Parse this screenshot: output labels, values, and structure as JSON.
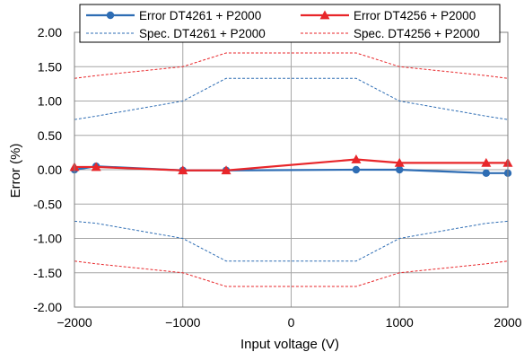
{
  "chart_data": {
    "type": "line",
    "xlabel": "Input voltage (V)",
    "ylabel": "Error (%)",
    "xlim": [
      -2000,
      2000
    ],
    "ylim": [
      -2.0,
      2.0
    ],
    "x_ticks": [
      -2000,
      -1000,
      0,
      1000,
      2000
    ],
    "x_tick_labels": [
      "−2000",
      "−1000",
      "0",
      "1000",
      "2000"
    ],
    "y_ticks": [
      2.0,
      1.5,
      1.0,
      0.5,
      0.0,
      -0.5,
      -1.0,
      -1.5,
      -2.0
    ],
    "y_tick_labels": [
      "2.00",
      "1.50",
      "1.00",
      "0.50",
      "0.00",
      "-0.50",
      "-1.00",
      "-1.50",
      "-2.00"
    ],
    "grid": true,
    "legend_position": "top",
    "series": [
      {
        "name": "Error DT4261 + P2000",
        "color": "#2E6DB4",
        "style": "solid",
        "marker": "circle",
        "x": [
          -2000,
          -1800,
          -1000,
          -600,
          600,
          1000,
          1800,
          2000
        ],
        "y": [
          0.0,
          0.05,
          -0.01,
          -0.01,
          0.0,
          0.0,
          -0.05,
          -0.05
        ]
      },
      {
        "name": "Error DT4256 + P2000",
        "color": "#E8262A",
        "style": "solid",
        "marker": "triangle",
        "x": [
          -2000,
          -1800,
          -1000,
          -600,
          600,
          1000,
          1800,
          2000
        ],
        "y": [
          0.04,
          0.04,
          -0.01,
          -0.01,
          0.15,
          0.1,
          0.1,
          0.1
        ]
      },
      {
        "name": "Spec. DT4261 + P2000",
        "color": "#2E6DB4",
        "style": "dashed",
        "marker": "none",
        "x": [
          -2000,
          -1800,
          -1000,
          -600,
          600,
          1000,
          1800,
          2000
        ],
        "y": [
          0.73,
          0.78,
          1.0,
          1.33,
          1.33,
          1.0,
          0.78,
          0.73
        ]
      },
      {
        "name": "Spec. DT4261 + P2000",
        "legend": false,
        "color": "#2E6DB4",
        "style": "dashed",
        "marker": "none",
        "x": [
          -2000,
          -1800,
          -1000,
          -600,
          600,
          1000,
          1800,
          2000
        ],
        "y": [
          -0.75,
          -0.78,
          -1.0,
          -1.33,
          -1.33,
          -1.0,
          -0.78,
          -0.75
        ]
      },
      {
        "name": "Spec. DT4256 + P2000",
        "color": "#E8262A",
        "style": "dashed",
        "marker": "none",
        "x": [
          -2000,
          -1800,
          -1000,
          -600,
          600,
          1000,
          1800,
          2000
        ],
        "y": [
          1.33,
          1.37,
          1.5,
          1.7,
          1.7,
          1.5,
          1.37,
          1.33
        ]
      },
      {
        "name": "Spec. DT4256 + P2000",
        "legend": false,
        "color": "#E8262A",
        "style": "dashed",
        "marker": "none",
        "x": [
          -2000,
          -1800,
          -1000,
          -600,
          600,
          1000,
          1800,
          2000
        ],
        "y": [
          -1.33,
          -1.37,
          -1.5,
          -1.7,
          -1.7,
          -1.5,
          -1.37,
          -1.33
        ]
      }
    ]
  }
}
